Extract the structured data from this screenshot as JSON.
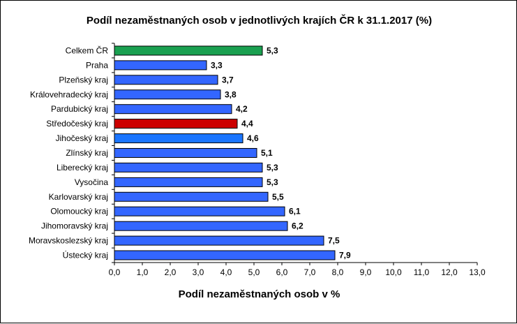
{
  "chart_data": {
    "type": "bar",
    "orientation": "horizontal",
    "title": "Podíl nezaměstnaných osob v jednotlivých krajích ČR k 31.1.2017 (%)",
    "xlabel": "Podíl nezaměstnaných osob v %",
    "ylabel": "",
    "xlim": [
      0,
      13
    ],
    "xticks": [
      "0,0",
      "1,0",
      "2,0",
      "3,0",
      "4,0",
      "5,0",
      "6,0",
      "7,0",
      "8,0",
      "9,0",
      "10,0",
      "11,0",
      "12,0",
      "13,0"
    ],
    "grid": false,
    "categories": [
      "Celkem ČR",
      "Praha",
      "Plzeňský kraj",
      "Královehradecký kraj",
      "Pardubický kraj",
      "Středočeský kraj",
      "Jihočeský kraj",
      "Zlínský kraj",
      "Liberecký kraj",
      "Vysočina",
      "Karlovarský kraj",
      "Olomoucký kraj",
      "Jihomoravský kraj",
      "Moravskoslezský kraj",
      "Ústecký kraj"
    ],
    "values": [
      5.3,
      3.3,
      3.7,
      3.8,
      4.2,
      4.4,
      4.6,
      5.1,
      5.3,
      5.3,
      5.5,
      6.1,
      6.2,
      7.5,
      7.9
    ],
    "value_labels": [
      "5,3",
      "3,3",
      "3,7",
      "3,8",
      "4,2",
      "4,4",
      "4,6",
      "5,1",
      "5,3",
      "5,3",
      "5,5",
      "6,1",
      "6,2",
      "7,5",
      "7,9"
    ],
    "colors": [
      "#1aa050",
      "#3366ff",
      "#3366ff",
      "#3366ff",
      "#3366ff",
      "#cc0000",
      "#1a75ff",
      "#3366ff",
      "#3366ff",
      "#3366ff",
      "#3366ff",
      "#3366ff",
      "#3366ff",
      "#3366ff",
      "#3366ff"
    ]
  }
}
